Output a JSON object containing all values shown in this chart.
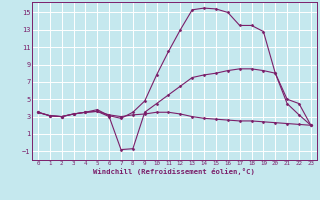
{
  "background_color": "#c5e8ee",
  "grid_color": "#ffffff",
  "line_color": "#7b1f6a",
  "xlabel": "Windchill (Refroidissement éolien,°C)",
  "xlim": [
    -0.5,
    23.5
  ],
  "ylim": [
    -2.0,
    16.2
  ],
  "xticks": [
    0,
    1,
    2,
    3,
    4,
    5,
    6,
    7,
    8,
    9,
    10,
    11,
    12,
    13,
    14,
    15,
    16,
    17,
    18,
    19,
    20,
    21,
    22,
    23
  ],
  "yticks": [
    -1,
    1,
    3,
    5,
    7,
    9,
    11,
    13,
    15
  ],
  "series": [
    {
      "x": [
        0,
        1,
        2,
        3,
        4,
        5,
        6,
        7,
        8,
        9,
        10,
        11,
        12,
        13,
        14,
        15,
        16,
        17,
        18,
        19,
        20,
        21,
        22,
        23
      ],
      "y": [
        3.5,
        3.1,
        3.0,
        3.3,
        3.5,
        3.8,
        3.1,
        2.8,
        3.5,
        4.8,
        7.8,
        10.5,
        13.0,
        15.3,
        15.5,
        15.4,
        15.0,
        13.5,
        13.5,
        12.8,
        8.0,
        4.5,
        3.2,
        2.0
      ]
    },
    {
      "x": [
        0,
        1,
        2,
        3,
        4,
        5,
        6,
        7,
        8,
        9,
        10,
        11,
        12,
        13,
        14,
        15,
        16,
        17,
        18,
        19,
        20,
        21,
        22,
        23
      ],
      "y": [
        3.5,
        3.1,
        3.0,
        3.3,
        3.5,
        3.6,
        3.0,
        -0.8,
        -0.7,
        3.5,
        4.5,
        5.5,
        6.5,
        7.5,
        7.8,
        8.0,
        8.3,
        8.5,
        8.5,
        8.3,
        8.0,
        5.0,
        4.5,
        2.0
      ]
    },
    {
      "x": [
        0,
        1,
        2,
        3,
        4,
        5,
        6,
        7,
        8,
        9,
        10,
        11,
        12,
        13,
        14,
        15,
        16,
        17,
        18,
        19,
        20,
        21,
        22,
        23
      ],
      "y": [
        3.5,
        3.1,
        3.0,
        3.3,
        3.5,
        3.6,
        3.2,
        3.0,
        3.2,
        3.3,
        3.5,
        3.5,
        3.3,
        3.0,
        2.8,
        2.7,
        2.6,
        2.5,
        2.5,
        2.4,
        2.3,
        2.2,
        2.1,
        2.0
      ]
    }
  ]
}
